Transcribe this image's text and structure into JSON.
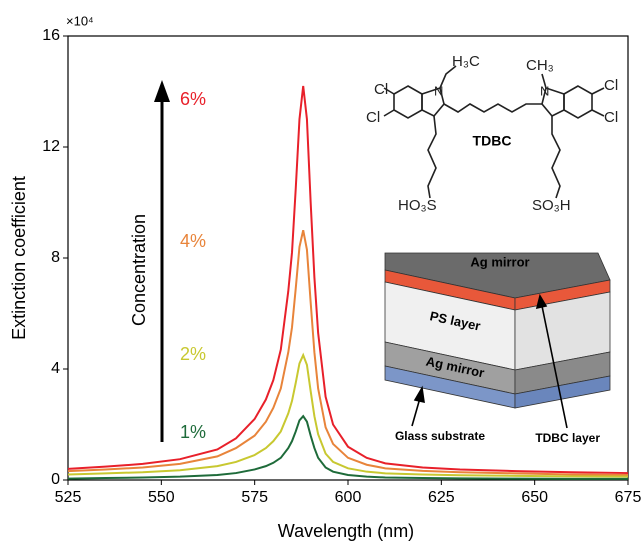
{
  "chart_data": {
    "type": "line",
    "x_label": "Wavelength (nm)",
    "y_label": "Extinction coefficient",
    "y_multiplier": "×10⁴",
    "arrow_label": "Concentration",
    "xlim": [
      525,
      675
    ],
    "xticks": [
      525,
      550,
      575,
      600,
      625,
      650,
      675
    ],
    "ylim": [
      0,
      16
    ],
    "yticks": [
      0,
      4,
      8,
      12,
      16
    ],
    "x": [
      525,
      535,
      545,
      555,
      565,
      570,
      575,
      578,
      580,
      582,
      584,
      585,
      586,
      587,
      588,
      589,
      590,
      591,
      592,
      594,
      596,
      600,
      605,
      610,
      620,
      630,
      645,
      660,
      675
    ],
    "series": [
      {
        "name": "6%",
        "color": "#e8202a",
        "values": [
          0.4,
          0.48,
          0.58,
          0.75,
          1.1,
          1.5,
          2.2,
          2.9,
          3.6,
          4.7,
          6.8,
          8.2,
          10.5,
          13.0,
          14.2,
          13.0,
          10.0,
          7.3,
          5.3,
          3.0,
          2.0,
          1.2,
          0.8,
          0.6,
          0.45,
          0.38,
          0.32,
          0.28,
          0.25
        ]
      },
      {
        "name": "4%",
        "color": "#e8843a",
        "values": [
          0.32,
          0.38,
          0.45,
          0.58,
          0.85,
          1.15,
          1.6,
          2.1,
          2.6,
          3.3,
          4.6,
          5.5,
          6.9,
          8.4,
          9.0,
          8.3,
          6.4,
          4.6,
          3.3,
          1.9,
          1.3,
          0.8,
          0.55,
          0.42,
          0.33,
          0.28,
          0.24,
          0.2,
          0.18
        ]
      },
      {
        "name": "2%",
        "color": "#c8c830",
        "values": [
          0.2,
          0.24,
          0.28,
          0.35,
          0.5,
          0.65,
          0.9,
          1.15,
          1.4,
          1.75,
          2.4,
          2.85,
          3.5,
          4.2,
          4.5,
          4.15,
          3.2,
          2.3,
          1.65,
          0.95,
          0.65,
          0.42,
          0.3,
          0.24,
          0.2,
          0.17,
          0.15,
          0.13,
          0.12
        ]
      },
      {
        "name": "1%",
        "color": "#1e6b3a",
        "values": [
          0.05,
          0.07,
          0.09,
          0.12,
          0.18,
          0.25,
          0.38,
          0.5,
          0.62,
          0.8,
          1.15,
          1.4,
          1.75,
          2.15,
          2.3,
          2.1,
          1.6,
          1.15,
          0.8,
          0.45,
          0.3,
          0.18,
          0.12,
          0.09,
          0.07,
          0.06,
          0.05,
          0.04,
          0.04
        ]
      }
    ],
    "molecule": {
      "cl_1": "Cl",
      "cl_2": "Cl",
      "cl_3": "Cl",
      "cl_4": "Cl",
      "n_1": "N",
      "n_2": "N",
      "methyl_1": "H₃C",
      "methyl_2": "CH₃",
      "name": "TDBC",
      "acid_1": "HO₃S",
      "acid_2": "SO₃H"
    },
    "device": {
      "top_mirror": "Ag mirror",
      "ps_layer": "PS layer",
      "bottom_mirror": "Ag mirror",
      "glass": "Glass substrate",
      "tdbc": "TDBC layer"
    }
  }
}
